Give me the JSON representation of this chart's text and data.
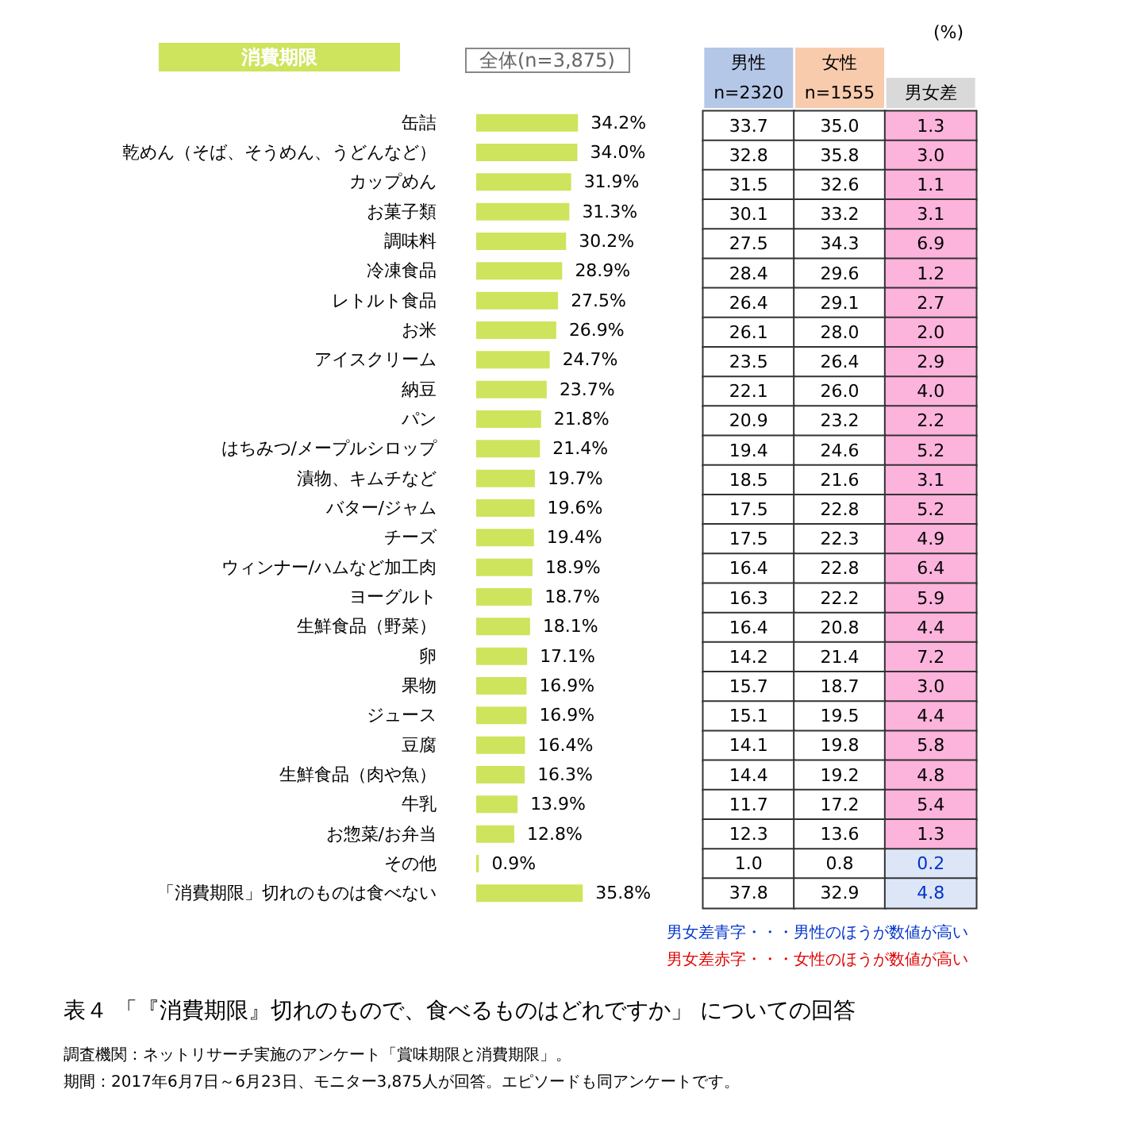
{
  "chart_data": [
    {
      "type": "bar",
      "orientation": "horizontal",
      "title": "消費期限",
      "subtitle": "全体(n=3,875)",
      "color": "#cde45c",
      "categories": [
        "缶詰",
        "乾めん（そば、そうめん、うどんなど）",
        "カップめん",
        "お菓子類",
        "調味料",
        "冷凍食品",
        "レトルト食品",
        "お米",
        "アイスクリーム",
        "納豆",
        "パン",
        "はちみつ/メープルシロップ",
        "漬物、キムチなど",
        "バター/ジャム",
        "チーズ",
        "ウィンナー/ハムなど加工肉",
        "ヨーグルト",
        "生鮮食品（野菜）",
        "卵",
        "果物",
        "ジュース",
        "豆腐",
        "生鮮食品（肉や魚）",
        "牛乳",
        "お惣菜/お弁当",
        "その他",
        "「消費期限」切れのものは食べない"
      ],
      "values": [
        34.2,
        34.0,
        31.9,
        31.3,
        30.2,
        28.9,
        27.5,
        26.9,
        24.7,
        23.7,
        21.8,
        21.4,
        19.7,
        19.6,
        19.4,
        18.9,
        18.7,
        18.1,
        17.1,
        16.9,
        16.9,
        16.4,
        16.3,
        13.9,
        12.8,
        0.9,
        35.8
      ],
      "value_labels": [
        "34.2%",
        "34.0%",
        "31.9%",
        "31.3%",
        "30.2%",
        "28.9%",
        "27.5%",
        "26.9%",
        "24.7%",
        "23.7%",
        "21.8%",
        "21.4%",
        "19.7%",
        "19.6%",
        "19.4%",
        "18.9%",
        "18.7%",
        "18.1%",
        "17.1%",
        "16.9%",
        "16.9%",
        "16.4%",
        "16.3%",
        "13.9%",
        "12.8%",
        "0.9%",
        "35.8%"
      ],
      "annotations": [
        "表４ 「『消費期限』切れのもので、食べるものはどれですか」 についての回答",
        "調査機関：ネットリサーチ実施のアンケート「賞味期限と消費期限」。",
        "期間：2017年6月7日～6月23日、モニター3,875人が回答。エピソードも同アンケートです。"
      ]
    },
    {
      "type": "heatmap",
      "title": "(%)",
      "tick_labels": "x",
      "categories": [
        "男性\nn=2320",
        "女性\nn=1555",
        "男女差"
      ],
      "y_categories": [
        null,
        null,
        null,
        null,
        null,
        null,
        null,
        null,
        null,
        null,
        null,
        null,
        null,
        null,
        null,
        null,
        null,
        null,
        null,
        null,
        null,
        null,
        null,
        null,
        null,
        null,
        null
      ],
      "cells": [
        [
          33.7,
          35.0,
          1.3
        ],
        [
          32.8,
          35.8,
          3.0
        ],
        [
          31.5,
          32.6,
          1.1
        ],
        [
          30.1,
          33.2,
          3.1
        ],
        [
          27.5,
          34.3,
          6.9
        ],
        [
          28.4,
          29.6,
          1.2
        ],
        [
          26.4,
          29.1,
          2.7
        ],
        [
          26.1,
          28.0,
          2.0
        ],
        [
          23.5,
          26.4,
          2.9
        ],
        [
          22.1,
          26.0,
          4.0
        ],
        [
          20.9,
          23.2,
          2.2
        ],
        [
          19.4,
          24.6,
          5.2
        ],
        [
          18.5,
          21.6,
          3.1
        ],
        [
          17.5,
          22.8,
          5.2
        ],
        [
          17.5,
          22.3,
          4.9
        ],
        [
          16.4,
          22.8,
          6.4
        ],
        [
          16.3,
          22.2,
          5.9
        ],
        [
          16.4,
          20.8,
          4.4
        ],
        [
          14.2,
          21.4,
          7.2
        ],
        [
          15.7,
          18.7,
          3.0
        ],
        [
          15.1,
          19.5,
          4.4
        ],
        [
          14.1,
          19.8,
          5.8
        ],
        [
          14.4,
          19.2,
          4.8
        ],
        [
          11.7,
          17.2,
          5.4
        ],
        [
          12.3,
          13.6,
          1.3
        ],
        [
          1.0,
          0.8,
          0.2
        ],
        [
          37.8,
          32.9,
          4.8
        ]
      ],
      "cell_labels": [
        [
          "33.7",
          "35.0",
          "1.3"
        ],
        [
          "32.8",
          "35.8",
          "3.0"
        ],
        [
          "31.5",
          "32.6",
          "1.1"
        ],
        [
          "30.1",
          "33.2",
          "3.1"
        ],
        [
          "27.5",
          "34.3",
          "6.9"
        ],
        [
          "28.4",
          "29.6",
          "1.2"
        ],
        [
          "26.4",
          "29.1",
          "2.7"
        ],
        [
          "26.1",
          "28.0",
          "2.0"
        ],
        [
          "23.5",
          "26.4",
          "2.9"
        ],
        [
          "22.1",
          "26.0",
          "4.0"
        ],
        [
          "20.9",
          "23.2",
          "2.2"
        ],
        [
          "19.4",
          "24.6",
          "5.2"
        ],
        [
          "18.5",
          "21.6",
          "3.1"
        ],
        [
          "17.5",
          "22.8",
          "5.2"
        ],
        [
          "17.5",
          "22.3",
          "4.9"
        ],
        [
          "16.4",
          "22.8",
          "6.4"
        ],
        [
          "16.3",
          "22.2",
          "5.9"
        ],
        [
          "16.4",
          "20.8",
          "4.4"
        ],
        [
          "14.2",
          "21.4",
          "7.2"
        ],
        [
          "15.7",
          "18.7",
          "3.0"
        ],
        [
          "15.1",
          "19.5",
          "4.4"
        ],
        [
          "14.1",
          "19.8",
          "5.8"
        ],
        [
          "14.4",
          "19.2",
          "4.8"
        ],
        [
          "11.7",
          "17.2",
          "5.4"
        ],
        [
          "12.3",
          "13.6",
          "1.3"
        ],
        [
          "1.0",
          "0.8",
          "0.2"
        ],
        [
          "37.8",
          "32.9",
          "4.8"
        ]
      ],
      "annotations": [
        "男女差青字・・・男性のほうが数値が高い",
        "男女差赤字・・・女性のほうが数値が高い"
      ]
    }
  ]
}
